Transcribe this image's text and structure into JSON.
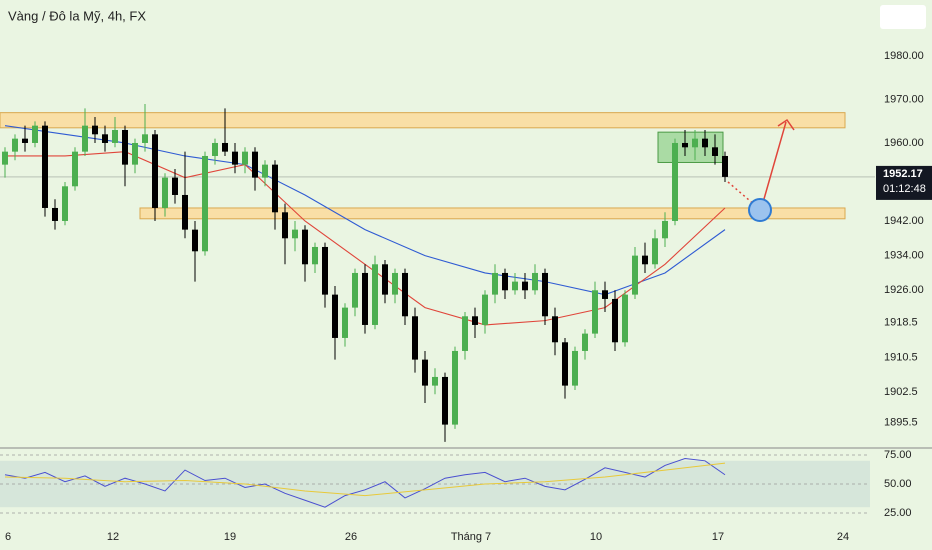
{
  "chart_data": [
    {
      "type": "candlestick",
      "title": "Vàng / Đô la Mỹ, 4h, FX",
      "candles": [
        [
          1955,
          1959,
          1952,
          1958
        ],
        [
          1958,
          1962,
          1956,
          1961
        ],
        [
          1961,
          1964,
          1958,
          1960
        ],
        [
          1960,
          1965,
          1959,
          1964
        ],
        [
          1964,
          1965,
          1943,
          1945
        ],
        [
          1945,
          1947,
          1940,
          1942
        ],
        [
          1942,
          1951,
          1941,
          1950
        ],
        [
          1950,
          1959,
          1949,
          1958
        ],
        [
          1958,
          1968,
          1957,
          1964
        ],
        [
          1964,
          1966,
          1960,
          1962
        ],
        [
          1962,
          1964,
          1958,
          1960
        ],
        [
          1960,
          1966,
          1959,
          1963
        ],
        [
          1963,
          1964,
          1950,
          1955
        ],
        [
          1955,
          1961,
          1953,
          1960
        ],
        [
          1960,
          1969,
          1958,
          1962
        ],
        [
          1962,
          1963,
          1942,
          1945
        ],
        [
          1945,
          1953,
          1943,
          1952
        ],
        [
          1952,
          1954,
          1946,
          1948
        ],
        [
          1948,
          1958,
          1938,
          1940
        ],
        [
          1940,
          1942,
          1928,
          1935
        ],
        [
          1935,
          1958,
          1934,
          1957
        ],
        [
          1957,
          1961,
          1955,
          1960
        ],
        [
          1960,
          1968,
          1957,
          1958
        ],
        [
          1958,
          1960,
          1953,
          1955
        ],
        [
          1955,
          1959,
          1953,
          1958
        ],
        [
          1958,
          1959,
          1949,
          1952
        ],
        [
          1952,
          1956,
          1950,
          1955
        ],
        [
          1955,
          1956,
          1940,
          1944
        ],
        [
          1944,
          1946,
          1932,
          1938
        ],
        [
          1938,
          1942,
          1935,
          1940
        ],
        [
          1940,
          1941,
          1928,
          1932
        ],
        [
          1932,
          1937,
          1930,
          1936
        ],
        [
          1936,
          1937,
          1922,
          1925
        ],
        [
          1925,
          1927,
          1910,
          1915
        ],
        [
          1915,
          1923,
          1913,
          1922
        ],
        [
          1922,
          1931,
          1920,
          1930
        ],
        [
          1930,
          1932,
          1916,
          1918
        ],
        [
          1918,
          1934,
          1917,
          1932
        ],
        [
          1932,
          1933,
          1923,
          1925
        ],
        [
          1925,
          1931,
          1923,
          1930
        ],
        [
          1930,
          1931,
          1918,
          1920
        ],
        [
          1920,
          1922,
          1907,
          1910
        ],
        [
          1910,
          1912,
          1900,
          1904
        ],
        [
          1904,
          1908,
          1902,
          1906
        ],
        [
          1906,
          1907,
          1891,
          1895
        ],
        [
          1895,
          1913,
          1894,
          1912
        ],
        [
          1912,
          1921,
          1910,
          1920
        ],
        [
          1920,
          1922,
          1915,
          1918
        ],
        [
          1918,
          1926,
          1916,
          1925
        ],
        [
          1925,
          1932,
          1923,
          1930
        ],
        [
          1930,
          1931,
          1924,
          1926
        ],
        [
          1926,
          1930,
          1925,
          1928
        ],
        [
          1928,
          1930,
          1924,
          1926
        ],
        [
          1926,
          1932,
          1925,
          1930
        ],
        [
          1930,
          1931,
          1918,
          1920
        ],
        [
          1920,
          1922,
          1911,
          1914
        ],
        [
          1914,
          1915,
          1901,
          1904
        ],
        [
          1904,
          1913,
          1903,
          1912
        ],
        [
          1912,
          1917,
          1910,
          1916
        ],
        [
          1916,
          1928,
          1915,
          1926
        ],
        [
          1926,
          1928,
          1921,
          1924
        ],
        [
          1924,
          1926,
          1912,
          1914
        ],
        [
          1914,
          1926,
          1913,
          1925
        ],
        [
          1925,
          1936,
          1924,
          1934
        ],
        [
          1934,
          1937,
          1930,
          1932
        ],
        [
          1932,
          1940,
          1931,
          1938
        ],
        [
          1938,
          1944,
          1936,
          1942
        ],
        [
          1942,
          1961,
          1941,
          1960
        ],
        [
          1960,
          1963,
          1957,
          1959
        ],
        [
          1959,
          1963,
          1956,
          1961
        ],
        [
          1961,
          1963,
          1957,
          1959
        ],
        [
          1959,
          1962,
          1955,
          1957
        ],
        [
          1957,
          1958,
          1951,
          1952.17
        ]
      ],
      "up_color": "#4caf50",
      "down_color": "#000000",
      "lines": [
        {
          "color": "#2f5bd3",
          "x": [
            0,
            6,
            12,
            18,
            24,
            30,
            36,
            42,
            48,
            54,
            60,
            66,
            72
          ],
          "values": [
            1964,
            1962,
            1960,
            1957,
            1955,
            1948,
            1940,
            1934,
            1930,
            1928,
            1925,
            1930,
            1940
          ]
        },
        {
          "color": "#e0453a",
          "x": [
            0,
            6,
            12,
            18,
            24,
            30,
            36,
            42,
            48,
            54,
            60,
            66,
            72
          ],
          "values": [
            1957,
            1957,
            1958,
            1952,
            1955,
            1942,
            1932,
            1922,
            1918,
            1919,
            1922,
            1932,
            1945
          ]
        }
      ],
      "zones": [
        {
          "color": "#f9dfa6",
          "xlim": [
            -0.5,
            84
          ],
          "ylim": [
            1963.5,
            1967
          ]
        },
        {
          "color": "#f9dfa6",
          "xlim": [
            13.5,
            84
          ],
          "ylim": [
            1942.5,
            1945
          ]
        }
      ],
      "box": {
        "color": "#8fd08a",
        "xlim": [
          65.3,
          71.8
        ],
        "ylim": [
          1955.5,
          1962.5
        ]
      },
      "last_price": 1952.17,
      "countdown": "01:12:48",
      "xlim": [
        -0.5,
        86.5
      ],
      "ylim": [
        1889.6,
        1993
      ],
      "xticks": [
        {
          "value": 0.3,
          "label": "6"
        },
        {
          "value": 10.8,
          "label": "12"
        },
        {
          "value": 22.5,
          "label": "19"
        },
        {
          "value": 34.6,
          "label": "26"
        },
        {
          "value": 46.6,
          "label": "Tháng 7"
        },
        {
          "value": 59.1,
          "label": "10"
        },
        {
          "value": 71.3,
          "label": "17"
        },
        {
          "value": 83.8,
          "label": "24"
        }
      ],
      "yticks": [
        {
          "value": 1980,
          "label": "1980.00"
        },
        {
          "value": 1970,
          "label": "1970.00"
        },
        {
          "value": 1960,
          "label": "1960.00"
        },
        {
          "value": 1942,
          "label": "1942.00"
        },
        {
          "value": 1934,
          "label": "1934.00"
        },
        {
          "value": 1926,
          "label": "1926.00"
        },
        1918.5,
        1910.5,
        1902.5,
        1895.5
      ]
    },
    {
      "type": "line",
      "band": [
        30,
        70
      ],
      "series": [
        {
          "color": "#4a4fd0",
          "x": [
            0,
            2,
            4,
            6,
            8,
            10,
            12,
            14,
            16,
            18,
            20,
            22,
            24,
            26,
            28,
            30,
            32,
            34,
            36,
            38,
            40,
            42,
            44,
            46,
            48,
            50,
            52,
            54,
            56,
            58,
            60,
            62,
            64,
            66,
            68,
            70,
            72
          ],
          "values": [
            58,
            55,
            60,
            52,
            57,
            48,
            55,
            50,
            44,
            62,
            53,
            55,
            47,
            50,
            42,
            36,
            30,
            40,
            45,
            52,
            38,
            46,
            55,
            58,
            60,
            52,
            55,
            48,
            45,
            54,
            64,
            60,
            56,
            66,
            72,
            70,
            58
          ]
        },
        {
          "color": "#e8c93a",
          "x": [
            0,
            6,
            12,
            18,
            24,
            30,
            36,
            42,
            48,
            54,
            60,
            66,
            72
          ],
          "values": [
            56,
            55,
            52,
            53,
            50,
            44,
            40,
            45,
            50,
            52,
            56,
            62,
            68
          ]
        }
      ],
      "xlim": [
        -0.5,
        86.5
      ],
      "ylim": [
        19,
        79.3
      ],
      "yticks": [
        {
          "value": 75,
          "label": "75.00"
        },
        {
          "value": 50,
          "label": "50.00"
        },
        {
          "value": 25,
          "label": "25.00"
        }
      ]
    }
  ]
}
